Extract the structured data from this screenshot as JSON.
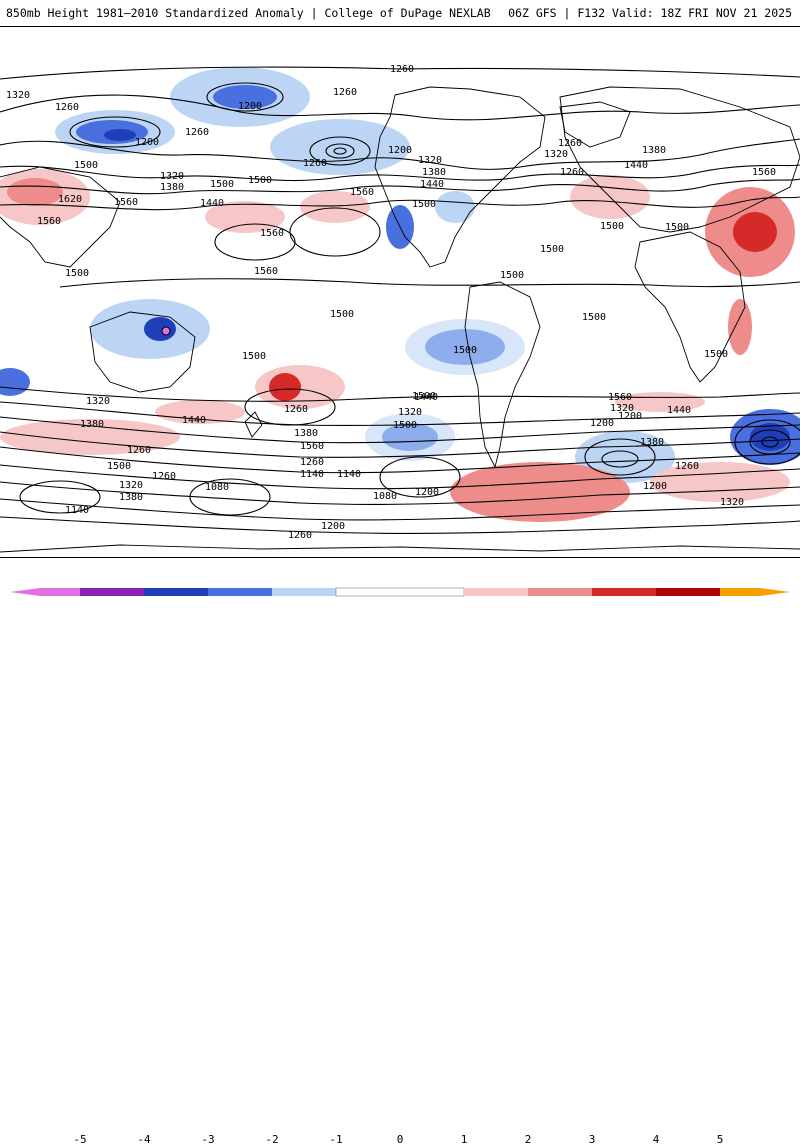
{
  "header": {
    "title_left": "850mb Height 1981–2010 Standardized Anomaly | College of DuPage NEXLAB",
    "title_right": "06Z GFS | F132 Valid: 18Z FRI NOV 21 2025"
  },
  "map": {
    "contour_labels": [
      {
        "id": "l1",
        "text": "1260"
      },
      {
        "id": "l2",
        "text": "1320"
      },
      {
        "id": "l3",
        "text": "1260"
      },
      {
        "id": "l4",
        "text": "1200"
      },
      {
        "id": "l5",
        "text": "1260"
      },
      {
        "id": "l6",
        "text": "1200"
      },
      {
        "id": "l7",
        "text": "1260"
      },
      {
        "id": "l8",
        "text": "1260"
      },
      {
        "id": "l9",
        "text": "1200"
      },
      {
        "id": "l10",
        "text": "1320"
      },
      {
        "id": "l11",
        "text": "1260"
      },
      {
        "id": "l12",
        "text": "1320"
      },
      {
        "id": "l13",
        "text": "1380"
      },
      {
        "id": "l14",
        "text": "1440"
      },
      {
        "id": "l15",
        "text": "1500"
      },
      {
        "id": "l16",
        "text": "1560"
      },
      {
        "id": "l17",
        "text": "1260"
      },
      {
        "id": "l18",
        "text": "1380"
      },
      {
        "id": "l19",
        "text": "1440"
      },
      {
        "id": "l20",
        "text": "1500"
      },
      {
        "id": "l21",
        "text": "1560"
      },
      {
        "id": "l22",
        "text": "1500"
      },
      {
        "id": "l23",
        "text": "1320"
      },
      {
        "id": "l24",
        "text": "1380"
      },
      {
        "id": "l25",
        "text": "1440"
      },
      {
        "id": "l26",
        "text": "1500"
      },
      {
        "id": "l27",
        "text": "1620"
      },
      {
        "id": "l28",
        "text": "1560"
      },
      {
        "id": "l29",
        "text": "1560"
      },
      {
        "id": "l30",
        "text": "1560"
      },
      {
        "id": "l31",
        "text": "1500"
      },
      {
        "id": "l32",
        "text": "1500"
      },
      {
        "id": "l33",
        "text": "1500"
      },
      {
        "id": "l34",
        "text": "1500"
      },
      {
        "id": "l35",
        "text": "1560"
      },
      {
        "id": "l36",
        "text": "1500"
      },
      {
        "id": "l37",
        "text": "1500"
      },
      {
        "id": "l38",
        "text": "1500"
      },
      {
        "id": "l39",
        "text": "1500"
      },
      {
        "id": "l40",
        "text": "1500"
      },
      {
        "id": "l41",
        "text": "1500"
      },
      {
        "id": "l42",
        "text": "1500"
      },
      {
        "id": "l43",
        "text": "1440"
      },
      {
        "id": "l44",
        "text": "1320"
      },
      {
        "id": "l45",
        "text": "1380"
      },
      {
        "id": "l46",
        "text": "1260"
      },
      {
        "id": "l47",
        "text": "1500"
      },
      {
        "id": "l48",
        "text": "1560"
      },
      {
        "id": "l49",
        "text": "1440"
      },
      {
        "id": "l50",
        "text": "1320"
      },
      {
        "id": "l51",
        "text": "1200"
      },
      {
        "id": "l52",
        "text": "1260"
      },
      {
        "id": "l53",
        "text": "1380"
      },
      {
        "id": "l54",
        "text": "1200"
      },
      {
        "id": "l55",
        "text": "1260"
      },
      {
        "id": "l56",
        "text": "1320"
      },
      {
        "id": "l57",
        "text": "1380"
      },
      {
        "id": "l58",
        "text": "1140"
      },
      {
        "id": "l59",
        "text": "1080"
      },
      {
        "id": "l60",
        "text": "1140"
      },
      {
        "id": "l61",
        "text": "1140"
      },
      {
        "id": "l62",
        "text": "1080"
      },
      {
        "id": "l63",
        "text": "1200"
      },
      {
        "id": "l64",
        "text": "1260"
      },
      {
        "id": "l65",
        "text": "1500"
      },
      {
        "id": "l66",
        "text": "1440"
      },
      {
        "id": "l67",
        "text": "1380"
      },
      {
        "id": "l68",
        "text": "1320"
      },
      {
        "id": "l69",
        "text": "1560"
      },
      {
        "id": "l70",
        "text": "1260"
      },
      {
        "id": "l71",
        "text": "1200"
      },
      {
        "id": "l72",
        "text": "1200"
      },
      {
        "id": "l73",
        "text": "1260"
      },
      {
        "id": "l74",
        "text": "1320"
      }
    ]
  },
  "legend": {
    "ticks": [
      "-5",
      "-4",
      "-3",
      "-2",
      "-1",
      "0",
      "1",
      "2",
      "3",
      "4",
      "5"
    ],
    "colors": {
      "m5": "#e070e0",
      "m4": "#8a1fb0",
      "m3": "#1f3fb8",
      "m2": "#4a70e0",
      "m1": "#bcd5f5",
      "zero": "#ffffff",
      "p1": "#f7c6c6",
      "p2": "#ee8c8c",
      "p3": "#d62a2a",
      "p4": "#b00000",
      "p5": "#f4a000"
    }
  }
}
